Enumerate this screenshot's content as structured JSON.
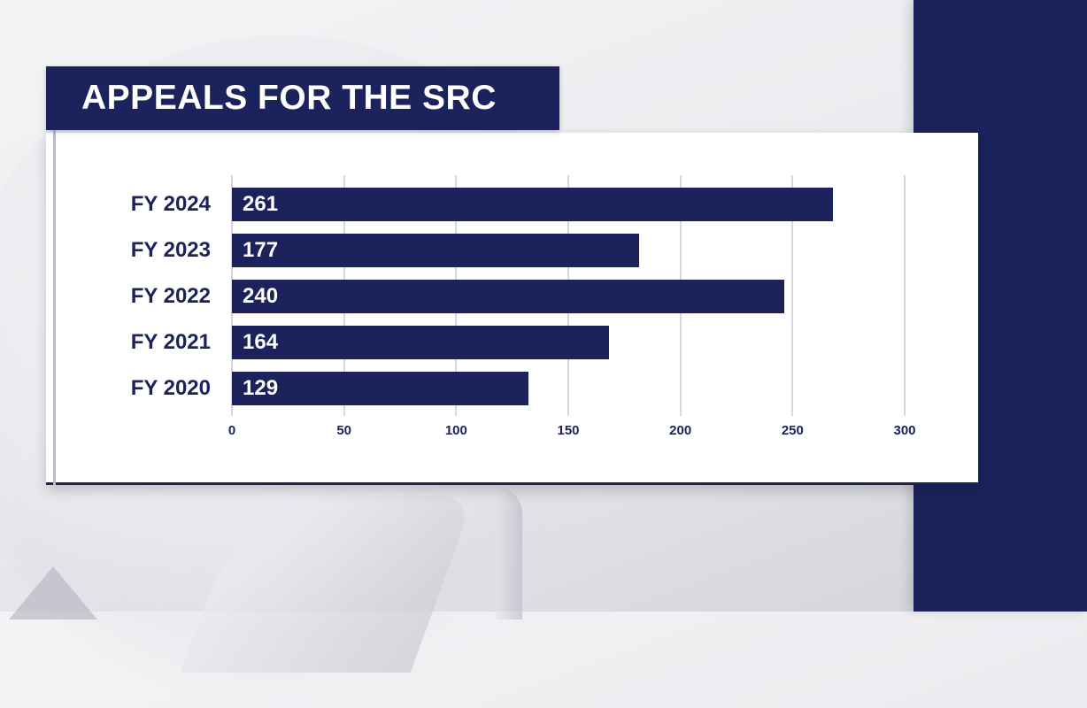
{
  "title": "APPEALS FOR THE SRC",
  "colors": {
    "navy": "#1b225c",
    "grid": "#d6d6dc",
    "card": "#ffffff"
  },
  "chart_data": {
    "type": "bar",
    "orientation": "horizontal",
    "title": "APPEALS FOR THE SRC",
    "categories": [
      "FY 2024",
      "FY 2023",
      "FY 2022",
      "FY 2021",
      "FY 2020"
    ],
    "values": [
      261,
      177,
      240,
      164,
      129
    ],
    "data_labels": [
      "261",
      "177",
      "240",
      "164",
      "129"
    ],
    "xlabel": "",
    "ylabel": "",
    "xlim": [
      0,
      300
    ],
    "x_ticks": [
      "0",
      "50",
      "100",
      "150",
      "200",
      "250",
      "300"
    ],
    "grid": true,
    "legend": null
  }
}
